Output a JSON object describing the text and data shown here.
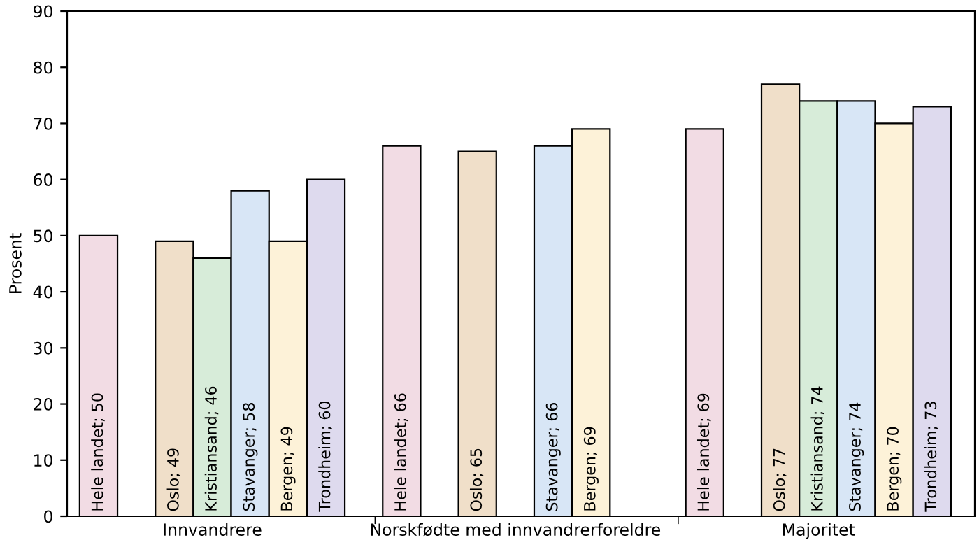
{
  "chart_data": {
    "type": "bar",
    "ylabel": "Prosent",
    "categories": [
      "Innvandrere",
      "Norskfødte med innvandrerforeldre",
      "Majoritet"
    ],
    "ylim": [
      0,
      90
    ],
    "yticks": [
      0,
      10,
      20,
      30,
      40,
      50,
      60,
      70,
      80,
      90
    ],
    "grid": false,
    "series": [
      {
        "color": "#f2dce4",
        "values": [
          50,
          66,
          69
        ],
        "value_labels": [
          "Hele landet; 50",
          "Hele landet; 66",
          "Hele landet; 69"
        ]
      },
      {
        "color": "#f0dfc9",
        "values": [
          49,
          65,
          77
        ],
        "value_labels": [
          "Oslo; 49",
          "Oslo; 65",
          "Oslo; 77"
        ]
      },
      {
        "color": "#d7ecd9",
        "values": [
          46,
          null,
          74
        ],
        "value_labels": [
          "Kristiansand; 46",
          null,
          "Kristiansand; 74"
        ]
      },
      {
        "color": "#d8e6f6",
        "values": [
          58,
          66,
          74
        ],
        "value_labels": [
          "Stavanger; 58",
          "Stavanger; 66",
          "Stavanger; 74"
        ]
      },
      {
        "color": "#fdf2d8",
        "values": [
          49,
          69,
          70
        ],
        "value_labels": [
          "Bergen; 49",
          "Bergen; 69",
          "Bergen; 70"
        ]
      },
      {
        "color": "#dedaee",
        "values": [
          60,
          null,
          73
        ],
        "value_labels": [
          "Trondheim; 60",
          null,
          "Trondheim; 73"
        ]
      }
    ]
  }
}
